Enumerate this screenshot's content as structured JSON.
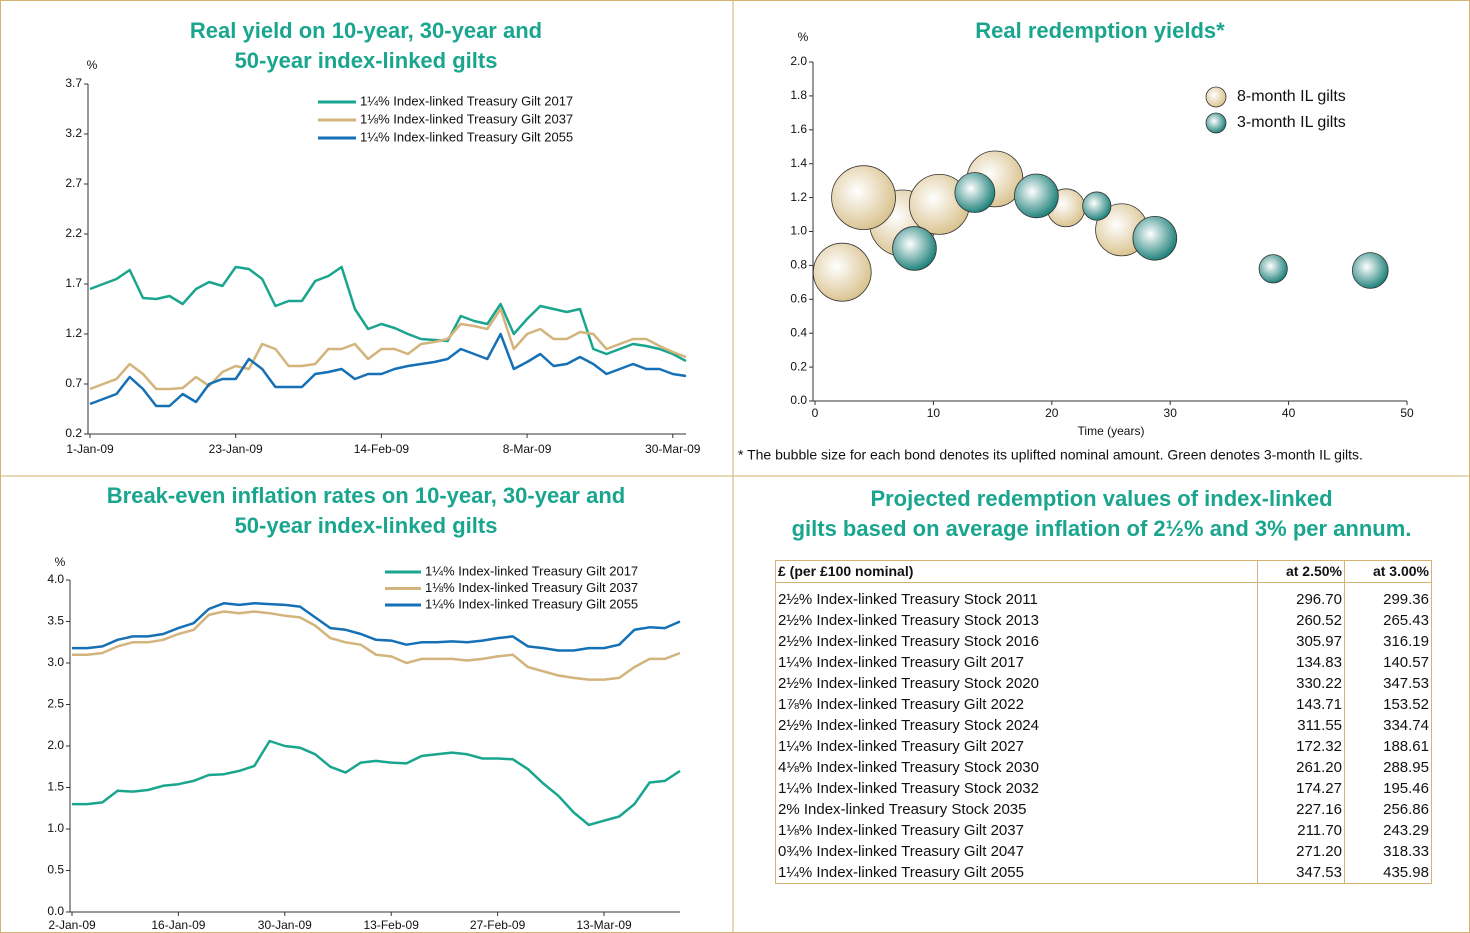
{
  "chart_data": [
    {
      "type": "line",
      "title": [
        "Real yield on 10-year, 30-year and",
        "50-year index-linked gilts"
      ],
      "y_unit": "%",
      "categories": [
        "1-Jan-09",
        null,
        null,
        null,
        null,
        null,
        null,
        null,
        null,
        null,
        null,
        "23-Jan-09",
        null,
        null,
        null,
        null,
        null,
        null,
        null,
        null,
        null,
        null,
        "14-Feb-09",
        null,
        null,
        null,
        null,
        null,
        null,
        null,
        null,
        null,
        null,
        "8-Mar-09",
        null,
        null,
        null,
        null,
        null,
        null,
        null,
        null,
        null,
        null,
        "30-Mar-09",
        null
      ],
      "ylim": [
        0.2,
        3.7
      ],
      "yticks": [
        0.2,
        0.7,
        1.2,
        1.7,
        2.2,
        2.7,
        3.2,
        3.7
      ],
      "series": [
        {
          "name": "1¼% Index-linked Treasury Gilt 2017",
          "color": "#1aa58f",
          "values": [
            1.65,
            1.7,
            1.75,
            1.84,
            1.56,
            1.55,
            1.58,
            1.5,
            1.65,
            1.72,
            1.68,
            1.87,
            1.85,
            1.75,
            1.48,
            1.53,
            1.53,
            1.73,
            1.78,
            1.87,
            1.45,
            1.25,
            1.3,
            1.26,
            1.2,
            1.15,
            1.14,
            1.13,
            1.38,
            1.33,
            1.3,
            1.5,
            1.2,
            1.35,
            1.48,
            1.45,
            1.42,
            1.45,
            1.05,
            1.0,
            1.05,
            1.1,
            1.08,
            1.05,
            1.0,
            0.93
          ]
        },
        {
          "name": "1⅛% Index-linked Treasury Gilt 2037",
          "color": "#d2b47c",
          "values": [
            0.65,
            0.7,
            0.75,
            0.9,
            0.8,
            0.65,
            0.65,
            0.66,
            0.77,
            0.68,
            0.82,
            0.88,
            0.85,
            1.1,
            1.05,
            0.88,
            0.88,
            0.9,
            1.05,
            1.05,
            1.1,
            0.95,
            1.05,
            1.05,
            1.0,
            1.1,
            1.12,
            1.15,
            1.3,
            1.28,
            1.25,
            1.45,
            1.05,
            1.2,
            1.25,
            1.15,
            1.15,
            1.22,
            1.2,
            1.05,
            1.1,
            1.15,
            1.15,
            1.08,
            1.02,
            0.97
          ]
        },
        {
          "name": "1¼% Index-linked Treasury Gilt 2055",
          "color": "#1570b5",
          "values": [
            0.5,
            0.55,
            0.6,
            0.77,
            0.65,
            0.48,
            0.48,
            0.6,
            0.52,
            0.7,
            0.75,
            0.75,
            0.95,
            0.85,
            0.67,
            0.67,
            0.67,
            0.8,
            0.82,
            0.85,
            0.75,
            0.8,
            0.8,
            0.85,
            0.88,
            0.9,
            0.92,
            0.95,
            1.05,
            1.0,
            0.95,
            1.2,
            0.85,
            0.92,
            1.0,
            0.88,
            0.9,
            0.97,
            0.9,
            0.8,
            0.85,
            0.9,
            0.85,
            0.85,
            0.8,
            0.78
          ]
        }
      ]
    },
    {
      "type": "scatter",
      "title": [
        "Real redemption yields*"
      ],
      "y_unit": "%",
      "x_label": "Time (years)",
      "footnote": "* The bubble size for each bond denotes its uplifted nominal amount. Green denotes 3-month IL gilts.",
      "xlim": [
        0,
        50
      ],
      "xticks": [
        0,
        10,
        20,
        30,
        40,
        50
      ],
      "ylim": [
        0,
        2
      ],
      "yticks": [
        {
          "value": 0,
          "label": "0.0"
        },
        0.2,
        0.4,
        0.6,
        0.8,
        {
          "value": 1,
          "label": "1.0"
        },
        1.2,
        1.4,
        1.6,
        1.8,
        {
          "value": 2,
          "label": "2.0"
        }
      ],
      "series": [
        {
          "name": "8-month IL gilts",
          "color": "#d8c08a",
          "x": [
            2.3,
            7.4,
            4.1,
            10.5,
            15.2,
            21.2,
            25.9
          ],
          "values": [
            0.76,
            1.05,
            1.2,
            1.16,
            1.31,
            1.14,
            1.01
          ],
          "sizes": [
            84,
            109,
            102,
            90,
            78,
            36,
            68
          ]
        },
        {
          "name": "3-month IL gilts",
          "color": "#127a73",
          "x": [
            8.4,
            13.5,
            18.7,
            23.8,
            28.7,
            38.7,
            46.9
          ],
          "values": [
            0.9,
            1.23,
            1.21,
            1.15,
            0.96,
            0.78,
            0.77
          ],
          "sizes": [
            48,
            40,
            48,
            20,
            48,
            20,
            32
          ]
        }
      ]
    },
    {
      "type": "line",
      "title": [
        "Break-even inflation rates on 10-year, 30-year and",
        "50-year index-linked gilts"
      ],
      "y_unit": "%",
      "categories": [
        "2-Jan-09",
        null,
        null,
        null,
        null,
        null,
        null,
        "16-Jan-09",
        null,
        null,
        null,
        null,
        null,
        null,
        "30-Jan-09",
        null,
        null,
        null,
        null,
        null,
        null,
        "13-Feb-09",
        null,
        null,
        null,
        null,
        null,
        null,
        "27-Feb-09",
        null,
        null,
        null,
        null,
        null,
        null,
        "13-Mar-09",
        null,
        null,
        null,
        null,
        null
      ],
      "ylim": [
        0,
        4
      ],
      "yticks": [
        {
          "value": 0,
          "label": "0.0"
        },
        0.5,
        {
          "value": 1,
          "label": "1.0"
        },
        1.5,
        {
          "value": 2,
          "label": "2.0"
        },
        2.5,
        {
          "value": 3,
          "label": "3.0"
        },
        3.5,
        {
          "value": 4,
          "label": "4.0"
        }
      ],
      "series": [
        {
          "name": "1¼% Index-linked Treasury Gilt 2017",
          "color": "#1aa58f",
          "values": [
            1.3,
            1.3,
            1.32,
            1.46,
            1.45,
            1.47,
            1.52,
            1.54,
            1.58,
            1.65,
            1.66,
            1.7,
            1.76,
            2.06,
            2.0,
            1.98,
            1.9,
            1.75,
            1.68,
            1.8,
            1.82,
            1.8,
            1.79,
            1.88,
            1.9,
            1.92,
            1.9,
            1.85,
            1.85,
            1.84,
            1.72,
            1.55,
            1.4,
            1.2,
            1.05,
            1.1,
            1.15,
            1.3,
            1.56,
            1.58,
            1.7
          ]
        },
        {
          "name": "1⅛% Index-linked Treasury Gilt 2037",
          "color": "#d2b47c",
          "values": [
            3.1,
            3.1,
            3.12,
            3.2,
            3.25,
            3.25,
            3.28,
            3.35,
            3.4,
            3.58,
            3.62,
            3.6,
            3.62,
            3.6,
            3.57,
            3.55,
            3.45,
            3.3,
            3.25,
            3.22,
            3.1,
            3.08,
            3.0,
            3.05,
            3.05,
            3.05,
            3.03,
            3.05,
            3.08,
            3.1,
            2.95,
            2.9,
            2.85,
            2.82,
            2.8,
            2.8,
            2.82,
            2.95,
            3.05,
            3.05,
            3.12
          ]
        },
        {
          "name": "1¼% Index-linked Treasury Gilt 2055",
          "color": "#1570b5",
          "values": [
            3.18,
            3.18,
            3.2,
            3.28,
            3.32,
            3.32,
            3.35,
            3.42,
            3.48,
            3.65,
            3.72,
            3.7,
            3.72,
            3.71,
            3.7,
            3.68,
            3.55,
            3.42,
            3.4,
            3.35,
            3.28,
            3.27,
            3.22,
            3.25,
            3.25,
            3.26,
            3.25,
            3.27,
            3.3,
            3.32,
            3.2,
            3.18,
            3.15,
            3.15,
            3.18,
            3.18,
            3.22,
            3.4,
            3.43,
            3.42,
            3.5
          ]
        }
      ]
    }
  ],
  "table": {
    "title": [
      "Projected redemption values of index-linked",
      "gilts based on average inflation of 2½% and 3% per annum."
    ],
    "header": [
      "£ (per £100 nominal)",
      "at 2.50%",
      "at 3.00%"
    ],
    "rows": [
      [
        "2½% Index-linked Treasury Stock 2011",
        "296.70",
        "299.36"
      ],
      [
        "2½% Index-linked Treasury Stock 2013",
        "260.52",
        "265.43"
      ],
      [
        "2½% Index-linked Treasury Stock 2016",
        "305.97",
        "316.19"
      ],
      [
        "1¼% Index-linked Treasury Gilt 2017",
        "134.83",
        "140.57"
      ],
      [
        "2½% Index-linked Treasury Stock 2020",
        "330.22",
        "347.53"
      ],
      [
        "1⅞% Index-linked Treasury Gilt 2022",
        "143.71",
        "153.52"
      ],
      [
        "2½% Index-linked Treasury Stock 2024",
        "311.55",
        "334.74"
      ],
      [
        "1¼% Index-linked Treasury Gilt 2027",
        "172.32",
        "188.61"
      ],
      [
        "4⅛% Index-linked Treasury Stock 2030",
        "261.20",
        "288.95"
      ],
      [
        "1¼% Index-linked Treasury Stock 2032",
        "174.27",
        "195.46"
      ],
      [
        "2% Index-linked Treasury Stock 2035",
        "227.16",
        "256.86"
      ],
      [
        "1⅛% Index-linked Treasury Gilt 2037",
        "211.70",
        "243.29"
      ],
      [
        "0¾% Index-linked Treasury Gilt 2047",
        "271.20",
        "318.33"
      ],
      [
        "1¼% Index-linked Treasury Gilt 2055",
        "347.53",
        "435.98"
      ]
    ]
  }
}
